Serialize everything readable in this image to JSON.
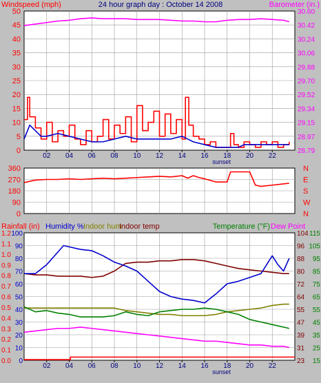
{
  "colors": {
    "panel_bg": "#c0c0c0",
    "plot_bg": "#ffffff",
    "grid": "#9a9a9a",
    "red": "#ff0000",
    "blue": "#0000cc",
    "magenta": "#ff00ff",
    "olive": "#808000",
    "maroon": "#800000",
    "green": "#008000",
    "darkblue": "#00008b",
    "navy_text": "#000080"
  },
  "chart_data": [
    {
      "type": "line",
      "title": "24 hour graph day : October 14 2008",
      "left_axis_label": "Windspeed (mph)",
      "right_axis_label": "Barometer (in.)",
      "x_tick_labels": [
        "02",
        "04",
        "06",
        "08",
        "10",
        "12",
        "14",
        "16",
        "18",
        "20",
        "22"
      ],
      "x_ticks_hours": [
        2,
        4,
        6,
        8,
        10,
        12,
        14,
        16,
        18,
        20,
        22
      ],
      "x_annotation": "sunset",
      "x_annotation_hour": 17.5,
      "xlim": [
        0,
        24
      ],
      "ylim_left": [
        0,
        50
      ],
      "ylim_right": [
        28.79,
        30.6
      ],
      "left_tick_labels": [
        "0",
        "5",
        "10",
        "15",
        "20",
        "25",
        "30",
        "35",
        "40",
        "45",
        "50"
      ],
      "right_tick_labels": [
        "28.79",
        "28.97",
        "29.15",
        "29.34",
        "29.52",
        "29.70",
        "29.88",
        "30.06",
        "30.24",
        "30.42",
        "30.60"
      ],
      "series": [
        {
          "name": "Windspeed (mph)",
          "color_key": "red",
          "axis": "left",
          "step": true,
          "x": [
            0,
            0.3,
            0.5,
            1,
            1.5,
            2,
            2.5,
            3,
            3.5,
            4,
            4.5,
            5,
            5.5,
            6,
            6.5,
            7,
            7.5,
            8,
            8.5,
            9,
            9.5,
            10,
            10.5,
            11,
            11.5,
            12,
            12.5,
            13,
            13.5,
            14,
            14.3,
            14.6,
            15,
            15.5,
            16,
            16.5,
            17,
            17.5,
            18,
            18.3,
            18.6,
            19,
            19.5,
            20,
            20.5,
            21,
            21.5,
            22,
            22.5,
            23,
            23.5
          ],
          "y": [
            11,
            19,
            12,
            8,
            4,
            10,
            3,
            7,
            5,
            9,
            4,
            2,
            7,
            3,
            5,
            11,
            4,
            9,
            6,
            12,
            3,
            16,
            7,
            10,
            14,
            5,
            13,
            6,
            11,
            4,
            19,
            9,
            5,
            4,
            2,
            3,
            1,
            1,
            1,
            6,
            2,
            1,
            3,
            2,
            1,
            3,
            2,
            3,
            1,
            2,
            3
          ]
        },
        {
          "name": "Windspeed average",
          "color_key": "blue",
          "axis": "left",
          "x": [
            0,
            0.5,
            1,
            1.5,
            2,
            3,
            4,
            5,
            6,
            7,
            8,
            9,
            10,
            11,
            12,
            13,
            14,
            14.5,
            15,
            16,
            17,
            18,
            19,
            19.5,
            20,
            21,
            22,
            23,
            23.5
          ],
          "y": [
            4,
            9,
            7,
            5,
            5,
            6,
            5,
            4,
            3,
            3,
            4,
            5,
            4,
            4,
            4,
            4,
            5,
            4,
            3,
            2,
            1,
            1,
            1,
            2,
            2,
            2,
            2,
            2,
            2
          ]
        },
        {
          "name": "Barometer (in.)",
          "color_key": "magenta",
          "axis": "right",
          "x": [
            0,
            1,
            2,
            3,
            4,
            5,
            6,
            7,
            8,
            9,
            10,
            11,
            12,
            13,
            14,
            15,
            16,
            17,
            18,
            19,
            20,
            21,
            22,
            23,
            23.5
          ],
          "y": [
            30.41,
            30.43,
            30.45,
            30.47,
            30.48,
            30.5,
            30.51,
            30.5,
            30.5,
            30.5,
            30.49,
            30.49,
            30.49,
            30.48,
            30.47,
            30.47,
            30.46,
            30.46,
            30.48,
            30.49,
            30.49,
            30.5,
            30.49,
            30.48,
            30.46
          ]
        }
      ]
    },
    {
      "type": "line",
      "title": "",
      "left_tick_labels": [
        "0",
        "90",
        "180",
        "270",
        "360"
      ],
      "right_tick_labels": [
        "N",
        "W",
        "S",
        "E",
        "N"
      ],
      "ylim": [
        0,
        360
      ],
      "xlim": [
        0,
        24
      ],
      "series": [
        {
          "name": "",
          "color_key": "red",
          "x": [
            0,
            1,
            2,
            3,
            4,
            5,
            6,
            7,
            8,
            9,
            10,
            11,
            12,
            13,
            14,
            14.5,
            15,
            15.5,
            16,
            17,
            18,
            18.3,
            19,
            19.5,
            20,
            20.5,
            21,
            22,
            23,
            23.5
          ],
          "y": [
            245,
            265,
            270,
            270,
            275,
            270,
            275,
            280,
            275,
            280,
            285,
            290,
            295,
            290,
            300,
            280,
            300,
            285,
            275,
            250,
            250,
            330,
            330,
            330,
            330,
            225,
            215,
            225,
            235,
            240
          ]
        }
      ]
    },
    {
      "type": "line",
      "left_labels": [
        "Rainfall (in)",
        "Humidity %",
        "Indoor hum",
        "Indoor temp"
      ],
      "right_labels": [
        "Temperature (°F)",
        "Dew Point"
      ],
      "xlim": [
        0,
        24
      ],
      "x_tick_labels": [
        "02",
        "04",
        "06",
        "08",
        "10",
        "12",
        "14",
        "16",
        "18",
        "20",
        "22"
      ],
      "x_ticks_hours": [
        2,
        4,
        6,
        8,
        10,
        12,
        14,
        16,
        18,
        20,
        22
      ],
      "x_annotation": "sunset",
      "x_annotation_hour": 17.5,
      "rain_tick_labels": [
        "0.0",
        "0.1",
        "0.2",
        "0.3",
        "0.4",
        "0.5",
        "0.6",
        "0.7",
        "0.8",
        "0.9",
        "1.0",
        "1.1",
        "1.2"
      ],
      "ylim_rain": [
        0,
        1.2
      ],
      "humidity_tick_labels": [
        "0",
        "10",
        "20",
        "30",
        "40",
        "50",
        "60",
        "70",
        "80",
        "90",
        "100"
      ],
      "ylim_humidity": [
        0,
        100
      ],
      "right1_tick_labels": [
        "23",
        "31",
        "39",
        "47",
        "55",
        "64",
        "72",
        "80",
        "88",
        "96",
        "104"
      ],
      "ylim_right1": [
        23,
        104
      ],
      "right2_tick_labels": [
        "15",
        "25",
        "35",
        "45",
        "55",
        "65",
        "75",
        "85",
        "95",
        "105",
        "115"
      ],
      "ylim_right2": [
        15,
        115
      ],
      "series": [
        {
          "name": "Rainfall (in)",
          "color_key": "red",
          "axis": "humidity",
          "step": true,
          "x": [
            0,
            4,
            4.1,
            24
          ],
          "y": [
            0.5,
            0.5,
            2.5,
            2.5
          ]
        },
        {
          "name": "Humidity %",
          "color_key": "blue",
          "axis": "humidity",
          "x": [
            0,
            1,
            2,
            3,
            3.5,
            4,
            5,
            6,
            7,
            8,
            9,
            10,
            11,
            12,
            13,
            14,
            15,
            16,
            17,
            18,
            19,
            20,
            21,
            22,
            22.5,
            23,
            23.5
          ],
          "y": [
            68,
            68,
            75,
            85,
            90,
            89,
            87,
            86,
            82,
            77,
            74,
            70,
            62,
            54,
            50,
            48,
            47,
            45,
            52,
            60,
            62,
            65,
            68,
            82,
            75,
            70,
            80
          ]
        },
        {
          "name": "Indoor hum",
          "color_key": "olive",
          "axis": "humidity",
          "x": [
            0,
            1,
            2,
            3,
            4,
            5,
            6,
            7,
            8,
            9,
            10,
            11,
            12,
            13,
            14,
            15,
            16,
            17,
            18,
            19,
            20,
            21,
            22,
            23,
            23.5
          ],
          "y": [
            41,
            41,
            41,
            41,
            41,
            41,
            41,
            41,
            41,
            39,
            38,
            37,
            36,
            36,
            35,
            35,
            35,
            36,
            38,
            39,
            40,
            41,
            43,
            44,
            44
          ]
        },
        {
          "name": "Indoor temp",
          "color_key": "maroon",
          "axis": "humidity",
          "x": [
            0,
            1,
            2,
            3,
            4,
            5,
            6,
            7,
            8,
            9,
            10,
            11,
            12,
            13,
            14,
            15,
            16,
            17,
            18,
            19,
            20,
            21,
            22,
            23,
            23.5
          ],
          "y": [
            68,
            67,
            67,
            66,
            66,
            66,
            65,
            66,
            70,
            76,
            77,
            77,
            78,
            78,
            79,
            79,
            78,
            76,
            74,
            72,
            71,
            70,
            69,
            68,
            68
          ]
        },
        {
          "name": "Temperature (°F)",
          "color_key": "green",
          "axis": "humidity",
          "x": [
            0,
            1,
            2,
            3,
            4,
            5,
            6,
            7,
            8,
            9,
            10,
            11,
            12,
            13,
            14,
            15,
            16,
            17,
            18,
            19,
            20,
            21,
            22,
            23,
            23.5
          ],
          "y": [
            42,
            38,
            39,
            37,
            36,
            34,
            34,
            34,
            35,
            38,
            36,
            35,
            38,
            39,
            40,
            40,
            41,
            40,
            38,
            36,
            32,
            30,
            28,
            26,
            25
          ]
        },
        {
          "name": "Dew Point",
          "color_key": "magenta",
          "axis": "humidity",
          "x": [
            0,
            1,
            2,
            3,
            4,
            5,
            6,
            7,
            8,
            9,
            10,
            11,
            12,
            13,
            14,
            15,
            16,
            17,
            18,
            19,
            20,
            21,
            22,
            23,
            23.5
          ],
          "y": [
            22,
            23,
            24,
            25,
            25,
            26,
            25,
            24,
            23,
            22,
            21,
            20,
            19,
            18,
            17,
            16,
            15,
            15,
            14,
            13,
            12,
            12,
            11,
            11,
            10
          ]
        }
      ]
    }
  ]
}
